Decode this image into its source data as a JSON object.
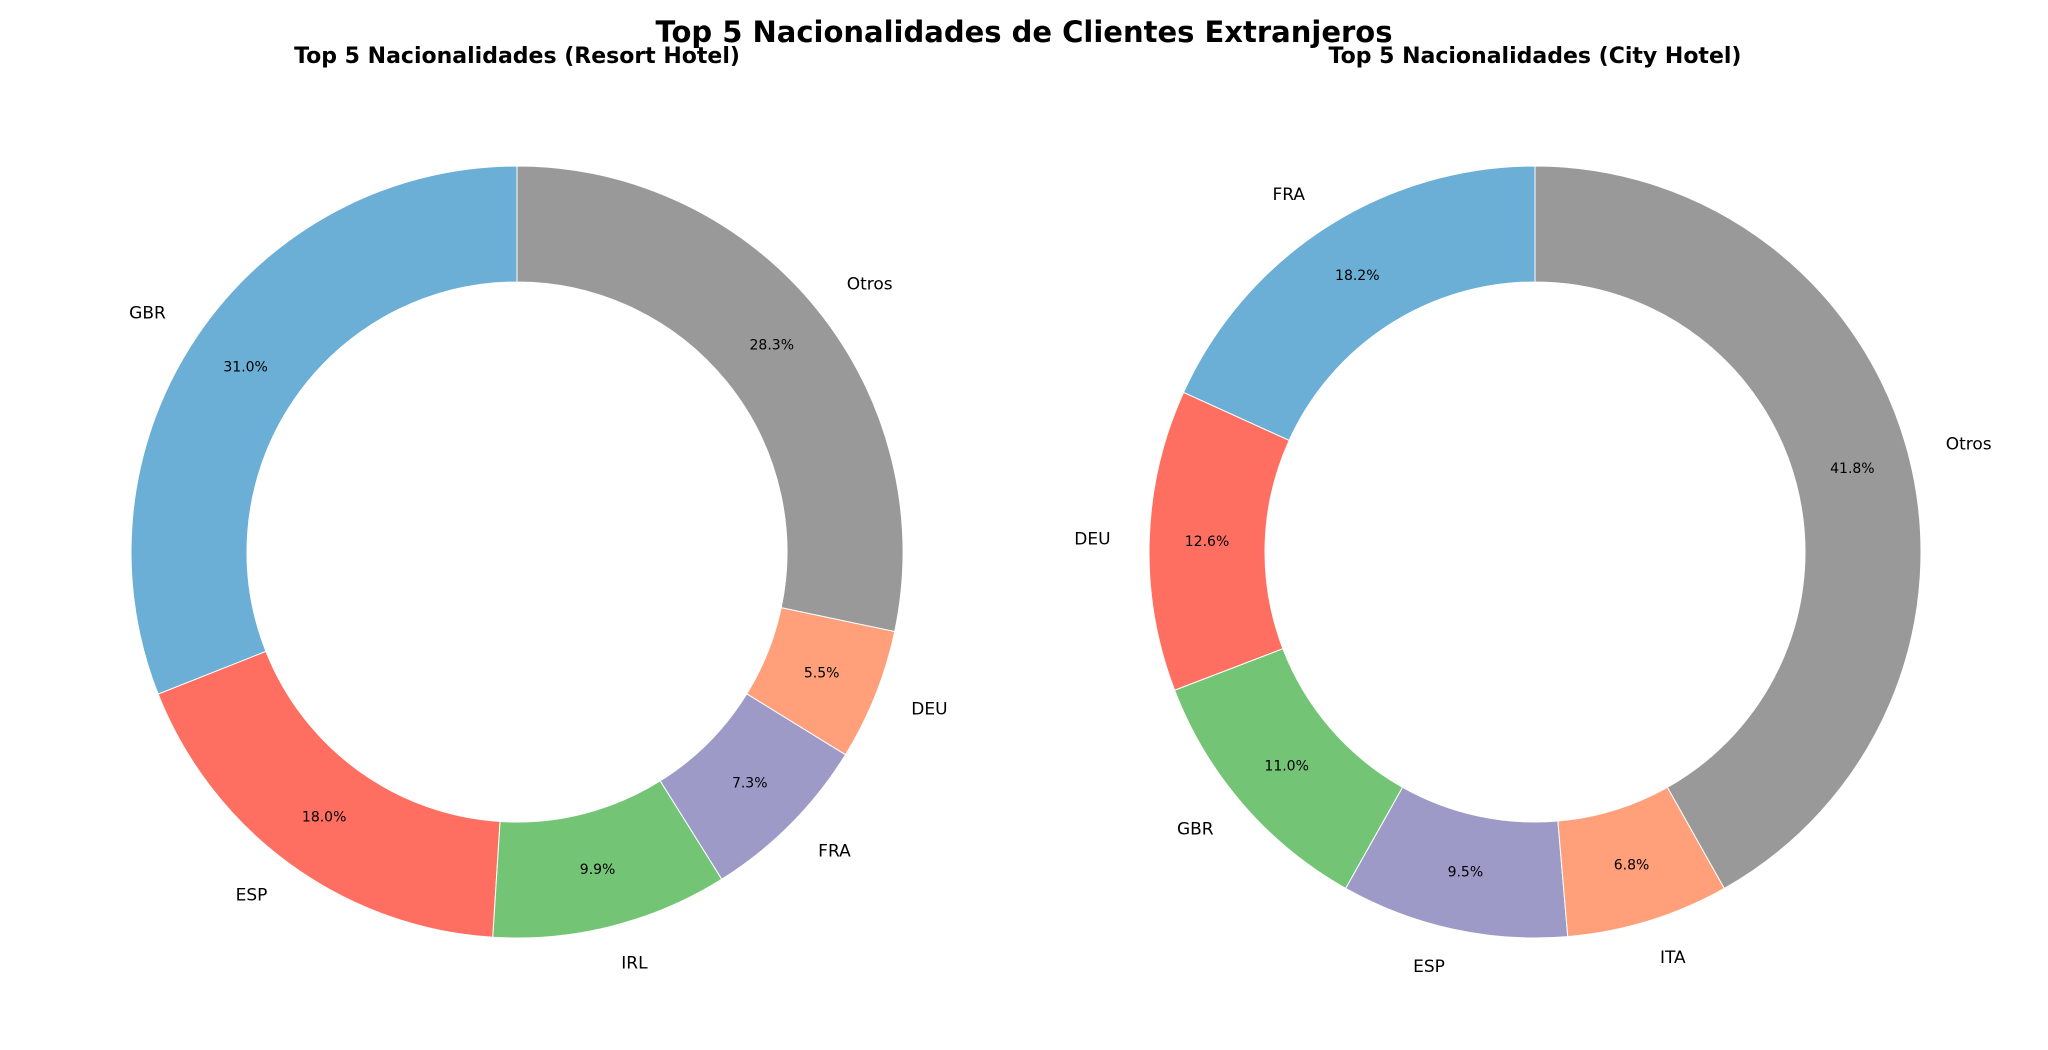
{
  "figure_title": "Top 5 Nacionalidades de Clientes Extranjeros",
  "chart_data": [
    {
      "type": "pie",
      "style": "donut",
      "title": "Top 5 Nacionalidades (Resort Hotel)",
      "start_angle_deg": 90,
      "direction": "counterclockwise",
      "categories": [
        "GBR",
        "ESP",
        "IRL",
        "FRA",
        "DEU",
        "Otros"
      ],
      "values": [
        31.0,
        18.0,
        9.9,
        7.3,
        5.5,
        28.3
      ],
      "value_labels": [
        "31.0%",
        "18.0%",
        "9.9%",
        "7.3%",
        "5.5%",
        "28.3%"
      ],
      "colors": [
        "#6baed6",
        "#ff6f61",
        "#74c476",
        "#9e9ac8",
        "#ffa07a",
        "#999999"
      ]
    },
    {
      "type": "pie",
      "style": "donut",
      "title": "Top 5 Nacionalidades (City Hotel)",
      "start_angle_deg": 90,
      "direction": "counterclockwise",
      "categories": [
        "FRA",
        "DEU",
        "GBR",
        "ESP",
        "ITA",
        "Otros"
      ],
      "values": [
        18.2,
        12.6,
        11.0,
        9.5,
        6.8,
        41.8
      ],
      "value_labels": [
        "18.2%",
        "12.6%",
        "11.0%",
        "9.5%",
        "6.8%",
        "41.8%"
      ],
      "colors": [
        "#6baed6",
        "#ff6f61",
        "#74c476",
        "#9e9ac8",
        "#ffa07a",
        "#999999"
      ]
    }
  ]
}
